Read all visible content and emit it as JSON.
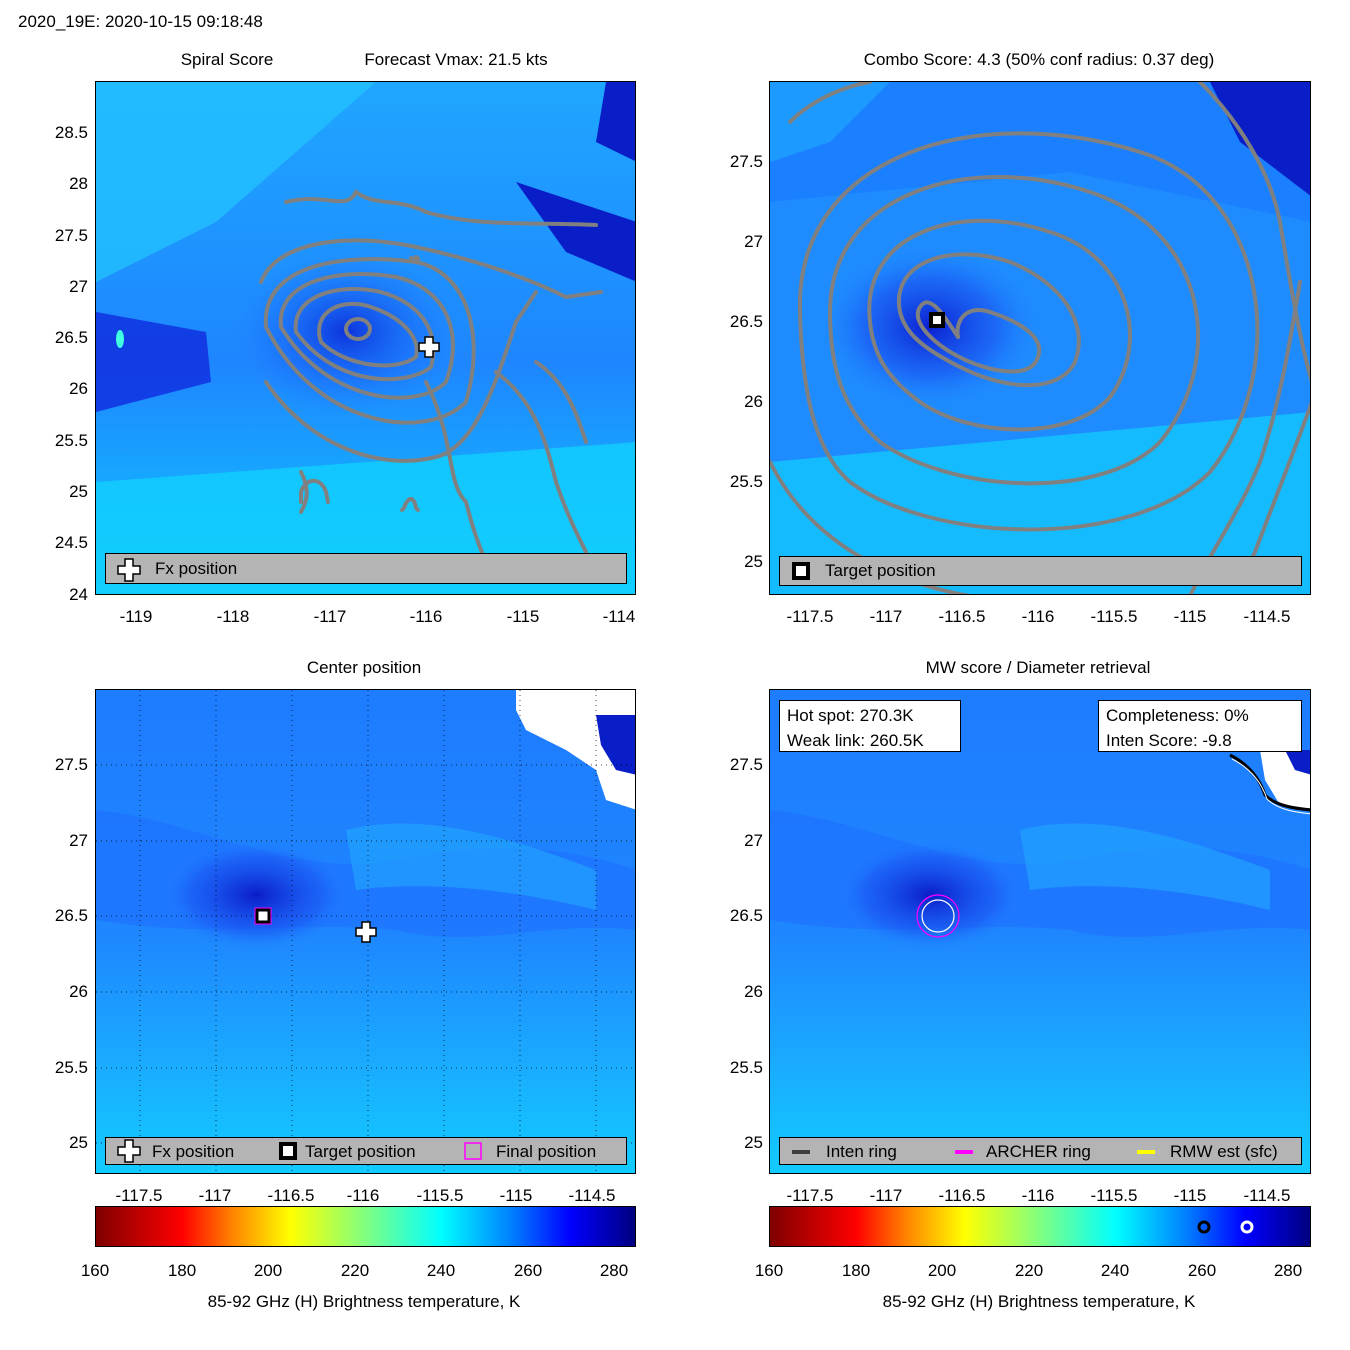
{
  "header": {
    "title": "2020_19E: 2020-10-15 09:18:48"
  },
  "panel_tl": {
    "title_left": "Spiral Score",
    "title_right": "Forecast Vmax: 21.5 kts",
    "yticks": [
      "28.5",
      "28",
      "27.5",
      "27",
      "26.5",
      "26",
      "25.5",
      "25",
      "24.5",
      "24"
    ],
    "xticks": [
      "-119",
      "-118",
      "-117",
      "-116",
      "-115",
      "-114"
    ],
    "legend_label": "Fx position"
  },
  "panel_tr": {
    "title": "Combo Score: 4.3  (50% conf radius: 0.37 deg)",
    "yticks": [
      "27.5",
      "27",
      "26.5",
      "26",
      "25.5",
      "25"
    ],
    "xticks": [
      "-117.5",
      "-117",
      "-116.5",
      "-116",
      "-115.5",
      "-115",
      "-114.5"
    ],
    "legend_label": "Target position"
  },
  "panel_bl": {
    "title": "Center position",
    "yticks": [
      "27.5",
      "27",
      "26.5",
      "26",
      "25.5",
      "25"
    ],
    "xticks": [
      "-117.5",
      "-117",
      "-116.5",
      "-116",
      "-115.5",
      "-115",
      "-114.5"
    ],
    "legend": {
      "fx": "Fx position",
      "target": "Target position",
      "final": "Final position"
    }
  },
  "panel_br": {
    "title": "MW score / Diameter retrieval",
    "yticks": [
      "27.5",
      "27",
      "26.5",
      "26",
      "25.5",
      "25"
    ],
    "xticks": [
      "-117.5",
      "-117",
      "-116.5",
      "-116",
      "-115.5",
      "-115",
      "-114.5"
    ],
    "hot_spot": "Hot spot: 270.3K",
    "weak_link": "Weak link: 260.5K",
    "completeness": "Completeness: 0%",
    "inten_score": "Inten Score: -9.8",
    "legend": {
      "inten": "Inten ring",
      "archer": "ARCHER ring",
      "rmw": "RMW est (sfc)"
    }
  },
  "colorbar": {
    "ticks": [
      "160",
      "180",
      "200",
      "220",
      "240",
      "260",
      "280"
    ],
    "label": "85-92 GHz (H) Brightness temperature, K"
  },
  "colors": {
    "contour": "#808080",
    "archer": "#ff00ff",
    "rmw": "#ffff00",
    "legend_bg": "#b4b4b4"
  },
  "chart_data": [
    {
      "type": "heatmap",
      "title": "Spiral Score",
      "subtitle": "Forecast Vmax: 21.5 kts",
      "xlim": [
        -119.4,
        -113.9
      ],
      "ylim": [
        24,
        29
      ],
      "fx_position": [
        -116.0,
        26.4
      ]
    },
    {
      "type": "heatmap",
      "title": "Combo Score: 4.3  (50% conf radius: 0.37 deg)",
      "xlim": [
        -117.8,
        -114.3
      ],
      "ylim": [
        24.8,
        28.0
      ],
      "target_position": [
        -116.65,
        26.5
      ]
    },
    {
      "type": "heatmap",
      "title": "Center position",
      "xlim": [
        -117.8,
        -114.3
      ],
      "ylim": [
        24.8,
        28.0
      ],
      "fx_position": [
        -115.97,
        26.4
      ],
      "target_position": [
        -116.65,
        26.5
      ],
      "final_position": [
        -116.65,
        26.5
      ]
    },
    {
      "type": "heatmap",
      "title": "MW score / Diameter retrieval",
      "xlim": [
        -117.8,
        -114.3
      ],
      "ylim": [
        24.8,
        28.0
      ],
      "ring_center": [
        -116.7,
        26.5
      ],
      "hot_spot_K": 270.3,
      "weak_link_K": 260.5,
      "completeness_pct": 0,
      "inten_score": -9.8
    },
    {
      "type": "colorbar",
      "range": [
        160,
        285
      ],
      "ticks": [
        160,
        180,
        200,
        220,
        240,
        260,
        280
      ]
    }
  ]
}
